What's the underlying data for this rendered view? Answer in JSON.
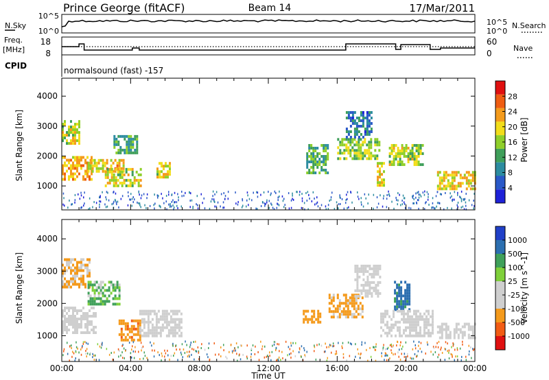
{
  "header": {
    "station": "Prince George (fitACF)",
    "beam": "Beam 14",
    "date": "17/Mar/2011"
  },
  "top_panel": {
    "left_label": "N.Sky",
    "left_ticks": [
      "10^5",
      "10^0"
    ],
    "right_label": "N.Search",
    "right_ticks": [
      "10^5",
      "10^0"
    ]
  },
  "freq_panel": {
    "left_label_1": "Freq.",
    "left_label_2": "[MHz]",
    "left_ticks": [
      "18",
      "8"
    ],
    "right_label": "Nave",
    "right_ticks": [
      "60",
      "0"
    ]
  },
  "cpid": {
    "label": "CPID",
    "value": "normalsound (fast) -157"
  },
  "colors": {
    "power_scale": [
      "#1e22d8",
      "#2a59c8",
      "#2c8ca0",
      "#3f9f5a",
      "#8fcf2a",
      "#f2dd1a",
      "#f49b1c",
      "#ef5d12",
      "#e01010"
    ],
    "velocity_scale": [
      "#e01010",
      "#f25c14",
      "#f49a1c",
      "#cfcfcf",
      "#cfcfcf",
      "#7fd03a",
      "#3fa05a",
      "#2c6fb0",
      "#2040c8"
    ]
  },
  "chart_data": [
    {
      "type": "heatmap",
      "panel": "power",
      "ylabel": "Slant Range [km]",
      "yticks": [
        "1000",
        "2000",
        "3000",
        "4000"
      ],
      "ylim": [
        200,
        4600
      ],
      "xticks": [
        "00:00",
        "04:00",
        "08:00",
        "12:00",
        "16:00",
        "20:00",
        "00:00"
      ],
      "colorbar_label": "Power [dB]",
      "colorbar_ticks": [
        "28",
        "24",
        "20",
        "16",
        "12",
        "8",
        "4"
      ],
      "colorbar_range": [
        0,
        32
      ],
      "regions": [
        {
          "t": [
            0.0,
            1.7
          ],
          "r": [
            1200,
            2000
          ],
          "v": 22
        },
        {
          "t": [
            0.0,
            1.0
          ],
          "r": [
            2400,
            3200
          ],
          "v": 18
        },
        {
          "t": [
            1.5,
            3.6
          ],
          "r": [
            1500,
            1900
          ],
          "v": 20
        },
        {
          "t": [
            2.5,
            4.6
          ],
          "r": [
            1000,
            1600
          ],
          "v": 18
        },
        {
          "t": [
            3.0,
            4.4
          ],
          "r": [
            2100,
            2700
          ],
          "v": 12
        },
        {
          "t": [
            5.5,
            6.3
          ],
          "r": [
            1300,
            1800
          ],
          "v": 19
        },
        {
          "t": [
            14.2,
            15.5
          ],
          "r": [
            1400,
            2400
          ],
          "v": 13
        },
        {
          "t": [
            16.0,
            18.5
          ],
          "r": [
            1900,
            2600
          ],
          "v": 16
        },
        {
          "t": [
            16.5,
            18.0
          ],
          "r": [
            2600,
            3500
          ],
          "v": 8
        },
        {
          "t": [
            18.3,
            18.7
          ],
          "r": [
            1000,
            1800
          ],
          "v": 20
        },
        {
          "t": [
            19.0,
            21.0
          ],
          "r": [
            1700,
            2400
          ],
          "v": 17
        },
        {
          "t": [
            21.8,
            24.0
          ],
          "r": [
            900,
            1500
          ],
          "v": 20
        }
      ]
    },
    {
      "type": "heatmap",
      "panel": "velocity",
      "ylabel": "Slant Range [km]",
      "yticks": [
        "1000",
        "2000",
        "3000",
        "4000"
      ],
      "ylim": [
        200,
        4600
      ],
      "xticks": [
        "00:00",
        "04:00",
        "08:00",
        "12:00",
        "16:00",
        "20:00",
        "00:00"
      ],
      "xlabel": "Time UT",
      "colorbar_label": "Velocity [m s^-1]",
      "colorbar_ticks": [
        "1000",
        "500",
        "100",
        "25",
        "-25",
        "-100",
        "-500",
        "-1000"
      ],
      "colorbar_range": [
        -1200,
        1200
      ],
      "regions": [
        {
          "t": [
            0.0,
            2.0
          ],
          "r": [
            1100,
            1900
          ],
          "v": 0
        },
        {
          "t": [
            0.0,
            1.6
          ],
          "r": [
            2500,
            3400
          ],
          "v": -150
        },
        {
          "t": [
            1.5,
            3.4
          ],
          "r": [
            2000,
            2700
          ],
          "v": 120
        },
        {
          "t": [
            3.3,
            4.5
          ],
          "r": [
            900,
            1500
          ],
          "v": -400
        },
        {
          "t": [
            4.5,
            7.0
          ],
          "r": [
            1000,
            1800
          ],
          "v": 0
        },
        {
          "t": [
            14.0,
            15.0
          ],
          "r": [
            1400,
            1800
          ],
          "v": -300
        },
        {
          "t": [
            15.5,
            17.5
          ],
          "r": [
            1600,
            2300
          ],
          "v": -200
        },
        {
          "t": [
            17.0,
            18.5
          ],
          "r": [
            2200,
            3200
          ],
          "v": 0
        },
        {
          "t": [
            19.3,
            20.2
          ],
          "r": [
            1800,
            2700
          ],
          "v": 600
        },
        {
          "t": [
            18.5,
            21.5
          ],
          "r": [
            1000,
            1800
          ],
          "v": 0
        },
        {
          "t": [
            21.8,
            24.0
          ],
          "r": [
            900,
            1400
          ],
          "v": 0
        }
      ]
    }
  ]
}
